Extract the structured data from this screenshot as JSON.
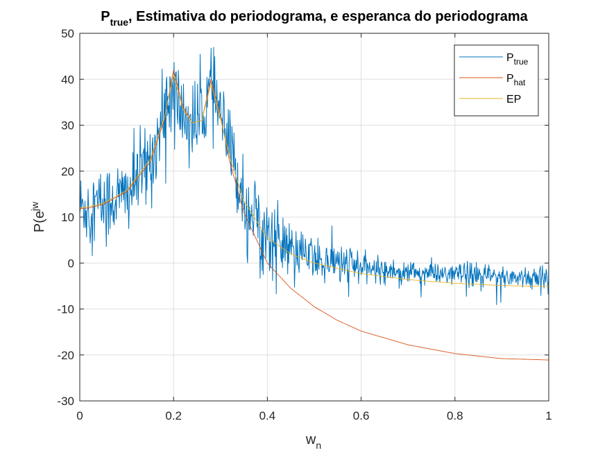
{
  "chart_data": {
    "type": "line",
    "title": {
      "main": "P",
      "sub": "true",
      "rest": ", Estimativa do periodograma, e esperanca do periodograma"
    },
    "xlabel": {
      "main": "w",
      "sub": "n"
    },
    "ylabel": {
      "main": "P(e",
      "sup": "jw"
    },
    "xlim": [
      0,
      1
    ],
    "ylim": [
      -30,
      50
    ],
    "xticks": [
      0,
      0.2,
      0.4,
      0.6,
      0.8,
      1
    ],
    "xtick_labels": [
      "0",
      "0.2",
      "0.4",
      "0.6",
      "0.8",
      "1"
    ],
    "yticks": [
      -30,
      -20,
      -10,
      0,
      10,
      20,
      30,
      40,
      50
    ],
    "ytick_labels": [
      "-30",
      "-20",
      "-10",
      "0",
      "10",
      "20",
      "30",
      "40",
      "50"
    ],
    "grid": true,
    "legend_position": "top-right",
    "series": [
      {
        "name": {
          "main": "P",
          "sub": "true"
        },
        "color": "#0072BD",
        "note_points": "noisy trace around EP",
        "x": [
          0,
          0.02,
          0.05,
          0.1,
          0.15,
          0.18,
          0.2,
          0.22,
          0.24,
          0.26,
          0.28,
          0.3,
          0.32,
          0.35,
          0.4,
          0.45,
          0.5,
          0.6,
          0.7,
          0.8,
          0.9,
          1
        ],
        "y": [
          12,
          12.5,
          13,
          15,
          22,
          32,
          38,
          32,
          30,
          32,
          38,
          32,
          24,
          14,
          6,
          3,
          1,
          -1,
          -2,
          -2.5,
          -3,
          -3
        ]
      },
      {
        "name": {
          "main": "P",
          "sub": "hat"
        },
        "color": "#D95319",
        "x": [
          0,
          0.02,
          0.05,
          0.1,
          0.15,
          0.18,
          0.2,
          0.22,
          0.24,
          0.26,
          0.28,
          0.3,
          0.32,
          0.35,
          0.4,
          0.45,
          0.5,
          0.55,
          0.6,
          0.7,
          0.8,
          0.9,
          1
        ],
        "y": [
          11.8,
          12,
          12.8,
          15.5,
          22,
          31,
          42,
          34,
          30.5,
          31,
          40,
          32,
          22,
          11,
          0,
          -5.5,
          -9.5,
          -12.5,
          -14.8,
          -17.8,
          -19.7,
          -20.8,
          -21.1
        ]
      },
      {
        "name": {
          "main": "EP",
          "sub": ""
        },
        "color": "#EDB120",
        "x": [
          0,
          0.02,
          0.05,
          0.1,
          0.15,
          0.18,
          0.2,
          0.22,
          0.24,
          0.26,
          0.28,
          0.3,
          0.32,
          0.35,
          0.4,
          0.45,
          0.5,
          0.6,
          0.7,
          0.8,
          0.9,
          1
        ],
        "y": [
          12,
          12.3,
          13,
          15.8,
          22.5,
          31.5,
          41,
          33.5,
          30.5,
          31,
          39,
          31.5,
          23,
          13.5,
          5.5,
          2,
          0,
          -2.3,
          -3.6,
          -4.4,
          -4.9,
          -5.1
        ]
      }
    ]
  }
}
